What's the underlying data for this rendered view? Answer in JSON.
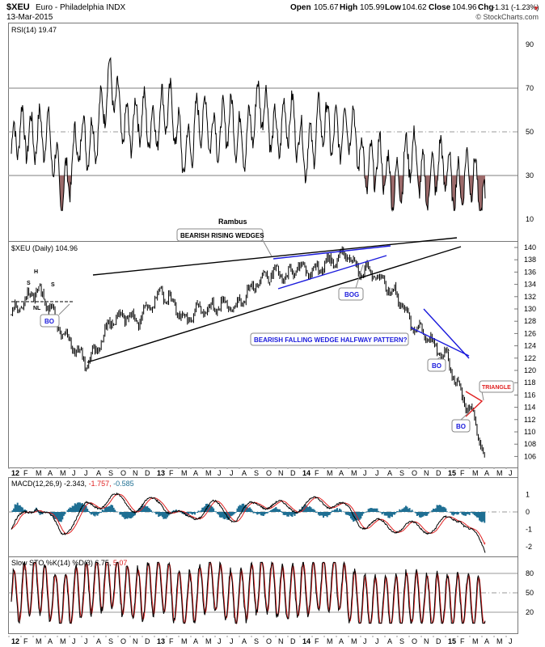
{
  "header": {
    "symbol": "$XEU",
    "name": "Euro - Philadelphia  INDX",
    "date": "13-Mar-2015",
    "open_label": "Open",
    "open": "105.67",
    "high_label": "High",
    "high": "105.99",
    "low_label": "Low",
    "low": "104.62",
    "close_label": "Close",
    "close": "104.96",
    "chg_label": "Chg",
    "chg": "-1.31 (-1.23%)",
    "watermark": "© StockCharts.com"
  },
  "colors": {
    "price": "#000000",
    "trendline": "#000000",
    "wedge": "#1a1adc",
    "annotation_red": "#e02020",
    "rsi_fill": "#9c6a6a",
    "macd_hist": "#1f6f93",
    "signal": "#e02020",
    "grid": "#999999"
  },
  "x_axis": {
    "labels": [
      "12",
      "F",
      "M",
      "A",
      "M",
      "J",
      "J",
      "A",
      "S",
      "O",
      "N",
      "D",
      "13",
      "F",
      "M",
      "A",
      "M",
      "J",
      "J",
      "A",
      "S",
      "O",
      "N",
      "D",
      "14",
      "F",
      "M",
      "A",
      "M",
      "J",
      "J",
      "A",
      "S",
      "O",
      "N",
      "D",
      "15",
      "F",
      "M",
      "A",
      "M",
      "J"
    ]
  },
  "rsi": {
    "label": "RSI(14) 19.47",
    "ticks": [
      "90",
      "70",
      "50",
      "30",
      "10"
    ]
  },
  "price_panel": {
    "label": "$XEU (Daily) 104.96",
    "ticks": [
      "140",
      "138",
      "136",
      "134",
      "132",
      "130",
      "128",
      "126",
      "124",
      "122",
      "120",
      "118",
      "116",
      "114",
      "112",
      "110",
      "108",
      "106"
    ]
  },
  "macd": {
    "label_prefix": "MACD(12,26,9) -2.343,",
    "label_signal": "-1.757,",
    "label_hist": "-0.585",
    "ticks": [
      "1",
      "0",
      "-1",
      "-2"
    ]
  },
  "sto": {
    "label_prefix": "Slow STO %K(14) %D(3) 6.75,",
    "label_d": "5.07",
    "ticks": [
      "80",
      "50",
      "20"
    ]
  },
  "annotations": {
    "rambus": "Rambus",
    "rising_wedges": "BEARISH RISING WEDGES",
    "falling_wedge": "BEARISH FALLING WEDGE HALFWAY PATTERN?",
    "triangle": "TRIANGLE",
    "bo": "BO",
    "bog": "BOG",
    "h": "H",
    "s": "S",
    "nl": "NL"
  },
  "chart_data": [
    {
      "type": "line",
      "title": "RSI(14) 19.47",
      "ylim": [
        0,
        100
      ],
      "reference_lines": [
        70,
        50,
        30
      ],
      "x": [
        "2012-01",
        "2012-03",
        "2012-05",
        "2012-07",
        "2012-09",
        "2012-11",
        "2013-01",
        "2013-03",
        "2013-05",
        "2013-07",
        "2013-09",
        "2013-11",
        "2014-01",
        "2014-03",
        "2014-05",
        "2014-07",
        "2014-09",
        "2014-11",
        "2015-01",
        "2015-03"
      ],
      "values": [
        40,
        55,
        28,
        45,
        68,
        50,
        60,
        45,
        55,
        48,
        58,
        52,
        45,
        55,
        42,
        28,
        35,
        30,
        30,
        19.47
      ]
    },
    {
      "type": "line",
      "title": "$XEU (Daily) 104.96",
      "ylim": [
        104,
        141
      ],
      "x": [
        "2012-01",
        "2012-02",
        "2012-03",
        "2012-04",
        "2012-05",
        "2012-06",
        "2012-07",
        "2012-08",
        "2012-09",
        "2012-10",
        "2012-11",
        "2012-12",
        "2013-01",
        "2013-02",
        "2013-03",
        "2013-04",
        "2013-05",
        "2013-06",
        "2013-07",
        "2013-08",
        "2013-09",
        "2013-10",
        "2013-11",
        "2013-12",
        "2014-01",
        "2014-02",
        "2014-03",
        "2014-04",
        "2014-05",
        "2014-06",
        "2014-07",
        "2014-08",
        "2014-09",
        "2014-10",
        "2014-11",
        "2014-12",
        "2015-01",
        "2015-02",
        "2015-03"
      ],
      "values": [
        129,
        131,
        133,
        131,
        126,
        124,
        121,
        124,
        128,
        129,
        128,
        130,
        133,
        131,
        128,
        130,
        130,
        131,
        130,
        133,
        135,
        136,
        135,
        137,
        136,
        137,
        138,
        139,
        136,
        136,
        134,
        132,
        128,
        126,
        124,
        122,
        116,
        113,
        104.96
      ]
    },
    {
      "type": "line",
      "title": "MACD(12,26,9)",
      "ylim": [
        -2.5,
        1.8
      ],
      "series": [
        {
          "name": "MACD",
          "values": [
            -1,
            0.5,
            -1.2,
            0.2,
            0.8,
            0.3,
            0.6,
            -0.5,
            0.4,
            -0.3,
            0.6,
            0.2,
            0.5,
            0.6,
            -0.6,
            -0.8,
            -0.9,
            -0.9,
            -0.2,
            -2.343
          ]
        },
        {
          "name": "Signal",
          "values": [
            -1.1,
            0.3,
            -1,
            0.1,
            0.7,
            0.35,
            0.5,
            -0.4,
            0.3,
            -0.2,
            0.5,
            0.25,
            0.45,
            0.5,
            -0.5,
            -0.75,
            -0.85,
            -0.95,
            -0.4,
            -1.757
          ]
        }
      ],
      "x": [
        "2012-01",
        "2012-03",
        "2012-05",
        "2012-07",
        "2012-09",
        "2012-11",
        "2013-01",
        "2013-03",
        "2013-05",
        "2013-07",
        "2013-09",
        "2013-11",
        "2014-01",
        "2014-03",
        "2014-05",
        "2014-07",
        "2014-09",
        "2014-11",
        "2015-01",
        "2015-03"
      ]
    },
    {
      "type": "line",
      "title": "Slow STO %K(14) %D(3)",
      "ylim": [
        0,
        100
      ],
      "reference_lines": [
        80,
        50,
        20
      ],
      "series": [
        {
          "name": "%K",
          "values": [
            30,
            85,
            10,
            70,
            95,
            40,
            80,
            15,
            85,
            20,
            90,
            45,
            70,
            90,
            10,
            5,
            30,
            15,
            20,
            6.75
          ]
        },
        {
          "name": "%D",
          "values": [
            32,
            80,
            14,
            65,
            90,
            45,
            75,
            20,
            80,
            25,
            85,
            50,
            65,
            85,
            15,
            8,
            28,
            18,
            18,
            5.07
          ]
        }
      ],
      "x": [
        "2012-01",
        "2012-03",
        "2012-05",
        "2012-07",
        "2012-09",
        "2012-11",
        "2013-01",
        "2013-03",
        "2013-05",
        "2013-07",
        "2013-09",
        "2013-11",
        "2014-01",
        "2014-03",
        "2014-05",
        "2014-07",
        "2014-09",
        "2014-11",
        "2015-01",
        "2015-03"
      ]
    }
  ]
}
